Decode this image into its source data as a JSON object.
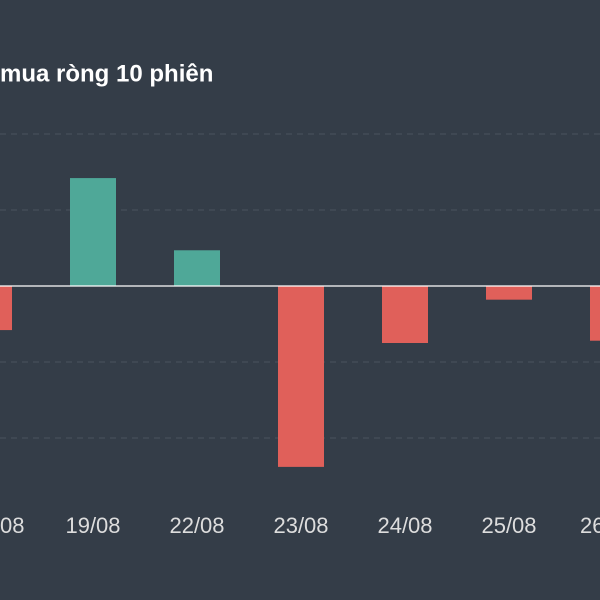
{
  "chart_data": {
    "type": "bar",
    "title": "mua ròng 10 phiên",
    "categories": [
      "08",
      "19/08",
      "22/08",
      "23/08",
      "24/08",
      "25/08",
      "26"
    ],
    "values": [
      -0.58,
      1.42,
      0.47,
      -2.38,
      -0.75,
      -0.18,
      -0.72
    ],
    "positive_color": "#4fa898",
    "negative_color": "#e0605a"
  }
}
